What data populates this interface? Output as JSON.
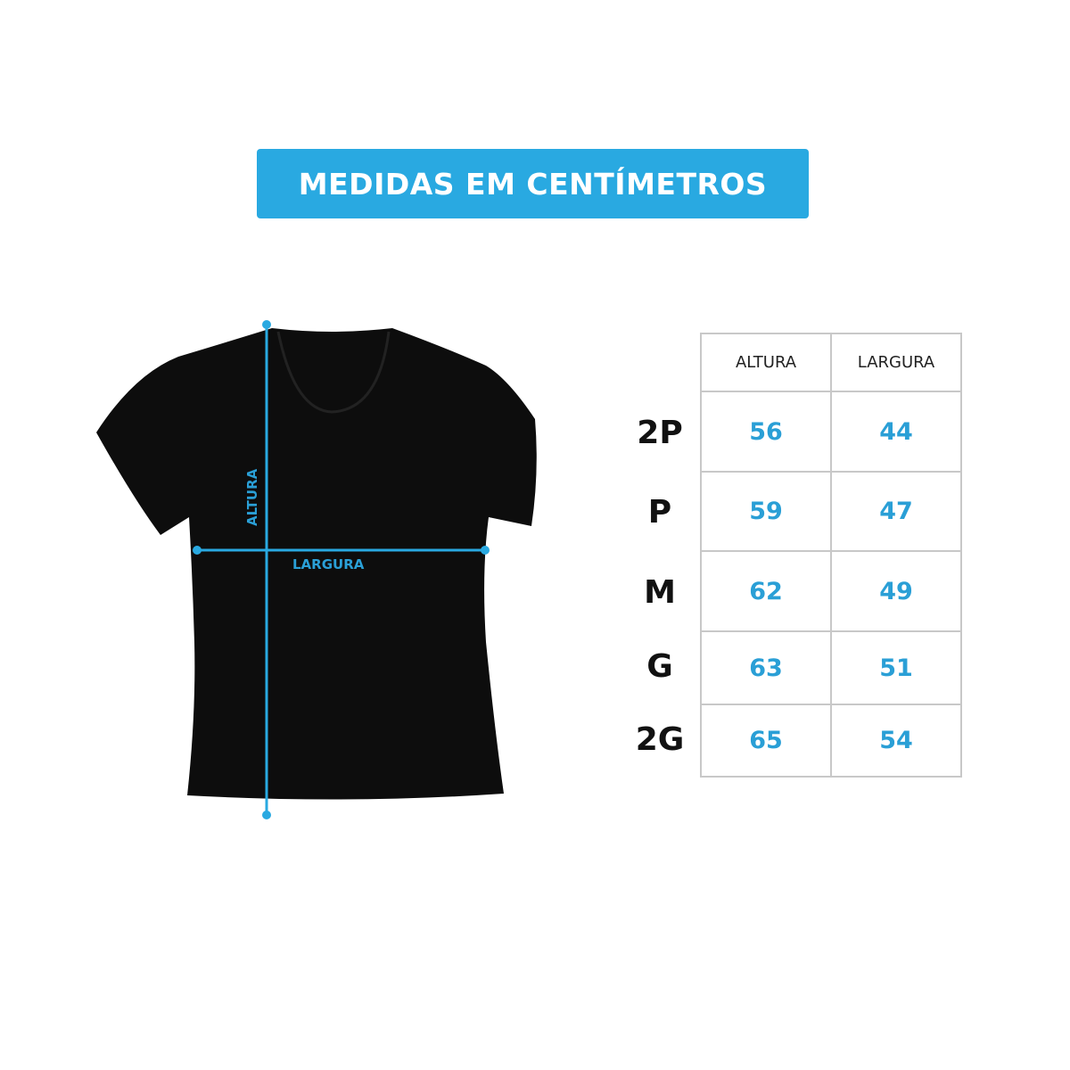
{
  "title": "MEDIDAS EM CENTÍMETROS",
  "diagram": {
    "height_label": "ALTURA",
    "width_label": "LARGURA",
    "accent_color": "#29a9e1",
    "shirt_color": "#0d0d0d"
  },
  "table": {
    "headers": [
      "ALTURA",
      "LARGURA"
    ],
    "rows": [
      {
        "size": "2P",
        "altura": "56",
        "largura": "44"
      },
      {
        "size": "P",
        "altura": "59",
        "largura": "47"
      },
      {
        "size": "M",
        "altura": "62",
        "largura": "49"
      },
      {
        "size": "G",
        "altura": "63",
        "largura": "51"
      },
      {
        "size": "2G",
        "altura": "65",
        "largura": "54"
      }
    ]
  }
}
